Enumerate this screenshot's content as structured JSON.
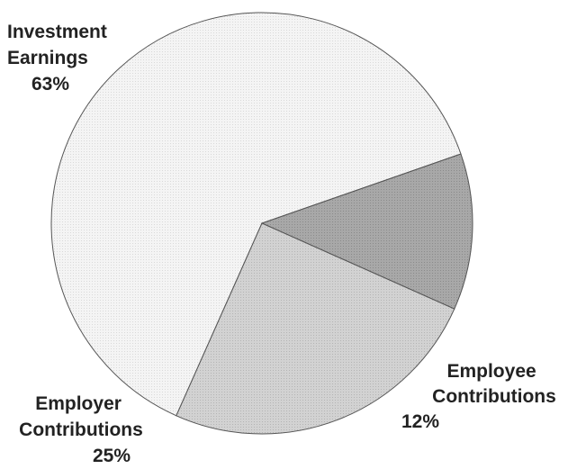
{
  "chart_data": {
    "type": "pie",
    "title": "",
    "slices": [
      {
        "label_lines": [
          "Investment",
          "Earnings"
        ],
        "percent_text": "63%",
        "value": 63,
        "color": "#f2f2f2"
      },
      {
        "label_lines": [
          "Employee",
          "Contributions"
        ],
        "percent_text": "12%",
        "value": 12,
        "color": "#a3a3a3"
      },
      {
        "label_lines": [
          "Employer",
          "Contributions"
        ],
        "percent_text": "25%",
        "value": 25,
        "color": "#cdcdcd"
      }
    ],
    "legend": "none"
  }
}
